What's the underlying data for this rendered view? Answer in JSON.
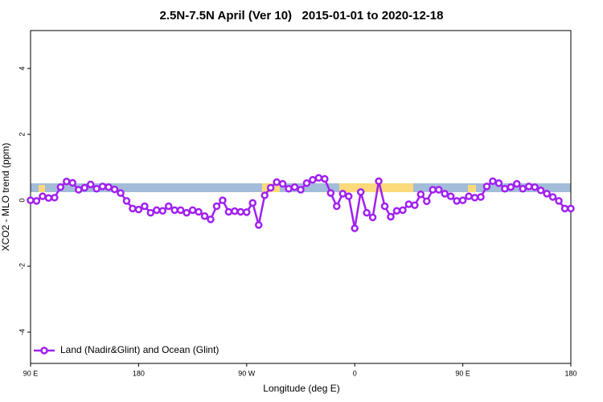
{
  "chart_data": {
    "type": "line",
    "title": "2.5N-7.5N April (Ver 10)   2015-01-01 to 2020-12-18",
    "x_label": "Longitude (deg E)",
    "y_label": "XCO2 - MLO trend (ppm)",
    "x": [
      90,
      95,
      100,
      105,
      110,
      115,
      120,
      125,
      130,
      135,
      140,
      145,
      150,
      155,
      160,
      165,
      170,
      175,
      180,
      185,
      190,
      195,
      200,
      205,
      210,
      215,
      220,
      225,
      230,
      235,
      240,
      245,
      250,
      255,
      260,
      265,
      270,
      275,
      280,
      285,
      290,
      295,
      300,
      305,
      310,
      315,
      320,
      325,
      330,
      335,
      340,
      345,
      350,
      355,
      360,
      365,
      370,
      375,
      380,
      385,
      390,
      395,
      400,
      405,
      410,
      415,
      420,
      425,
      430,
      435,
      440,
      445,
      450,
      455,
      460,
      465,
      470,
      475,
      480,
      485,
      490,
      495,
      500,
      505,
      510,
      515,
      520,
      525,
      530,
      535,
      540
    ],
    "series": [
      {
        "name": "Land (Nadir&Glint) and Ocean (Glint)",
        "color": "#a020f0",
        "values": [
          0,
          -0.02,
          0.12,
          0.07,
          0.08,
          0.4,
          0.57,
          0.53,
          0.32,
          0.38,
          0.48,
          0.35,
          0.42,
          0.4,
          0.33,
          0.22,
          -0.02,
          -0.25,
          -0.28,
          -0.18,
          -0.38,
          -0.3,
          -0.32,
          -0.18,
          -0.3,
          -0.3,
          -0.38,
          -0.3,
          -0.35,
          -0.48,
          -0.58,
          -0.18,
          0,
          -0.35,
          -0.33,
          -0.35,
          -0.36,
          -0.08,
          -0.75,
          0.15,
          0.38,
          0.55,
          0.5,
          0.35,
          0.4,
          0.32,
          0.52,
          0.62,
          0.68,
          0.65,
          0.22,
          -0.18,
          0.2,
          0.12,
          -0.85,
          0.25,
          -0.38,
          -0.52,
          0.58,
          -0.18,
          -0.5,
          -0.32,
          -0.3,
          -0.12,
          -0.15,
          0.18,
          -0.03,
          0.32,
          0.32,
          0.2,
          0.12,
          -0.02,
          0,
          0.12,
          0.08,
          0.1,
          0.42,
          0.58,
          0.52,
          0.35,
          0.4,
          0.5,
          0.35,
          0.42,
          0.4,
          0.3,
          0.2,
          0.1,
          -0.02,
          -0.25,
          -0.25
        ]
      }
    ],
    "xlim": [
      90,
      540
    ],
    "xticks": [
      {
        "value": 90,
        "label": "90 E"
      },
      180,
      {
        "value": 270,
        "label": "90 W"
      },
      {
        "value": 360,
        "label": "0"
      },
      {
        "value": 450,
        "label": "90 E"
      },
      {
        "value": 540,
        "label": "180"
      }
    ],
    "ylim": [
      -4.95,
      5.15
    ],
    "yticks": [
      -4,
      -2,
      0,
      2,
      4
    ],
    "legend": "bottom-left"
  }
}
